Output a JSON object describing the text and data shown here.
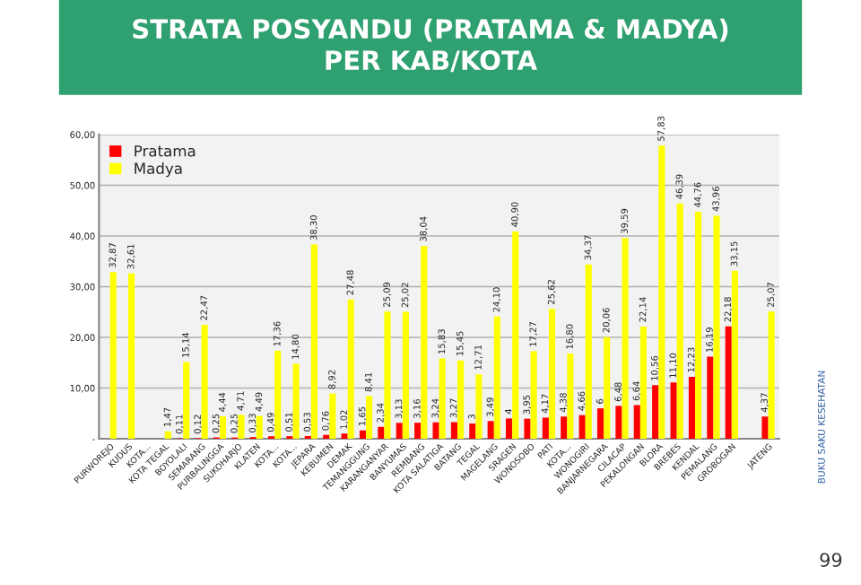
{
  "chart_data": {
    "type": "bar",
    "title": "STRATA POSYANDU (PRATAMA & MADYA)\nPER KAB/KOTA",
    "categories": [
      "PURWOREJO",
      "KUDUS",
      "KOTA...",
      "KOTA TEGAL",
      "BOYOLALI",
      "SEMARANG",
      "PURBALINGGA",
      "SUKOHARJO",
      "KLATEN",
      "KOTA...",
      "KOTA...",
      "JEPARA",
      "KEBUMEN",
      "DEMAK",
      "TEMANGGUNG",
      "KARANGANYAR",
      "BANYUMAS",
      "REMBANG",
      "KOTA SALATIGA",
      "BATANG",
      "TEGAL",
      "MAGELANG",
      "SRAGEN",
      "WONOSOBO",
      "PATI",
      "KOTA...",
      "WONOGIRI",
      "BANJARNEGARA",
      "CILACAP",
      "PEKALONGAN",
      "BLORA",
      "BREBES",
      "KENDAL",
      "PEMALANG",
      "GROBOGAN",
      null,
      "JATENG"
    ],
    "series": [
      {
        "name": "Pratama",
        "color": "#ff0000",
        "values": [
          0,
          0,
          0,
          0,
          0.11,
          0.12,
          0.25,
          0.25,
          0.33,
          0.49,
          0.51,
          0.53,
          0.76,
          1.02,
          1.65,
          2.34,
          3.13,
          3.16,
          3.24,
          3.27,
          3,
          3.49,
          4,
          3.95,
          4.17,
          4.38,
          4.66,
          6,
          6.48,
          6.64,
          10.56,
          11.1,
          12.23,
          16.19,
          22.18,
          null,
          4.37
        ],
        "value_labels": [
          null,
          null,
          null,
          null,
          "0,11",
          "0,12",
          "0,25",
          "0,25",
          "0,33",
          "0,49",
          "0,51",
          "0,53",
          "0,76",
          "1,02",
          "1,65",
          "2,34",
          "3,13",
          "3,16",
          "3,24",
          "3,27",
          "3",
          "3,49",
          "4",
          "3,95",
          "4,17",
          "4,38",
          "4,66",
          "6",
          "6,48",
          "6,64",
          "10,56",
          "11,10",
          "12,23",
          "16,19",
          "22,18",
          null,
          "4,37"
        ]
      },
      {
        "name": "Madya",
        "color": "#ffff00",
        "values": [
          32.87,
          32.61,
          0,
          1.47,
          15.14,
          22.47,
          4.44,
          4.71,
          4.49,
          17.36,
          14.8,
          38.3,
          8.92,
          27.48,
          8.41,
          25.09,
          25.02,
          38.04,
          15.83,
          15.45,
          12.71,
          24.1,
          40.9,
          17.27,
          25.62,
          16.8,
          34.37,
          20.06,
          39.59,
          22.14,
          57.83,
          46.39,
          44.76,
          43.96,
          33.15,
          null,
          25.07
        ],
        "value_labels": [
          "32,87",
          "32,61",
          null,
          "1,47",
          "15,14",
          "22,47",
          "4,44",
          "4,71",
          "4,49",
          "17,36",
          "14,80",
          "38,30",
          "8,92",
          "27,48",
          "8,41",
          "25,09",
          "25,02",
          "38,04",
          "15,83",
          "15,45",
          "12,71",
          "24,10",
          "40,90",
          "17,27",
          "25,62",
          "16,80",
          "34,37",
          "20,06",
          "39,59",
          "22,14",
          "57,83",
          "46,39",
          "44,76",
          "43,96",
          "33,15",
          null,
          "25,07"
        ]
      }
    ],
    "ylim": [
      0,
      60
    ],
    "yticks": [
      {
        "value": 0,
        "label": "-"
      },
      {
        "value": 10,
        "label": "10,00"
      },
      {
        "value": 20,
        "label": "20,00"
      },
      {
        "value": 30,
        "label": "30,00"
      },
      {
        "value": 40,
        "label": "40,00"
      },
      {
        "value": 50,
        "label": "50,00"
      },
      {
        "value": 60,
        "label": "60,00"
      }
    ],
    "grid": "y",
    "legend": "top left",
    "annotations": [
      "BUKU SAKU KESEHATAN",
      "99"
    ]
  }
}
